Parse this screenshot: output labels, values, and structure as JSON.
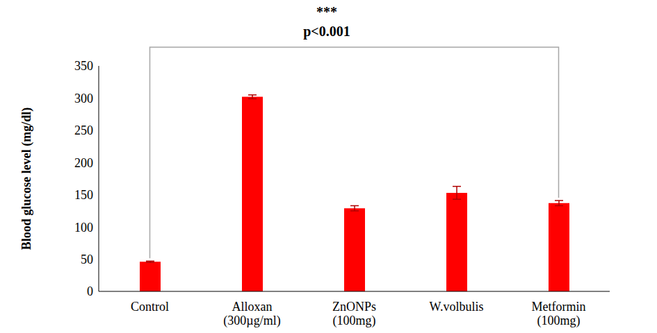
{
  "chart_data": {
    "type": "bar",
    "title": "***",
    "subtitle": "p<0.001",
    "y_label": "Blood glucose level (mg/dl)",
    "categories": [
      "Control",
      "Alloxan (300µg/ml)",
      "ZnONPs (100mg)",
      "W.volbulis",
      "Metformin (100mg)"
    ],
    "values": [
      46,
      302,
      129,
      153,
      137
    ],
    "errors": [
      1,
      3,
      4,
      10,
      4
    ],
    "color": "#ff0000",
    "ylim": [
      0,
      350
    ],
    "yticks": [
      0,
      50,
      100,
      150,
      200,
      250,
      300,
      350
    ],
    "grid": false
  }
}
